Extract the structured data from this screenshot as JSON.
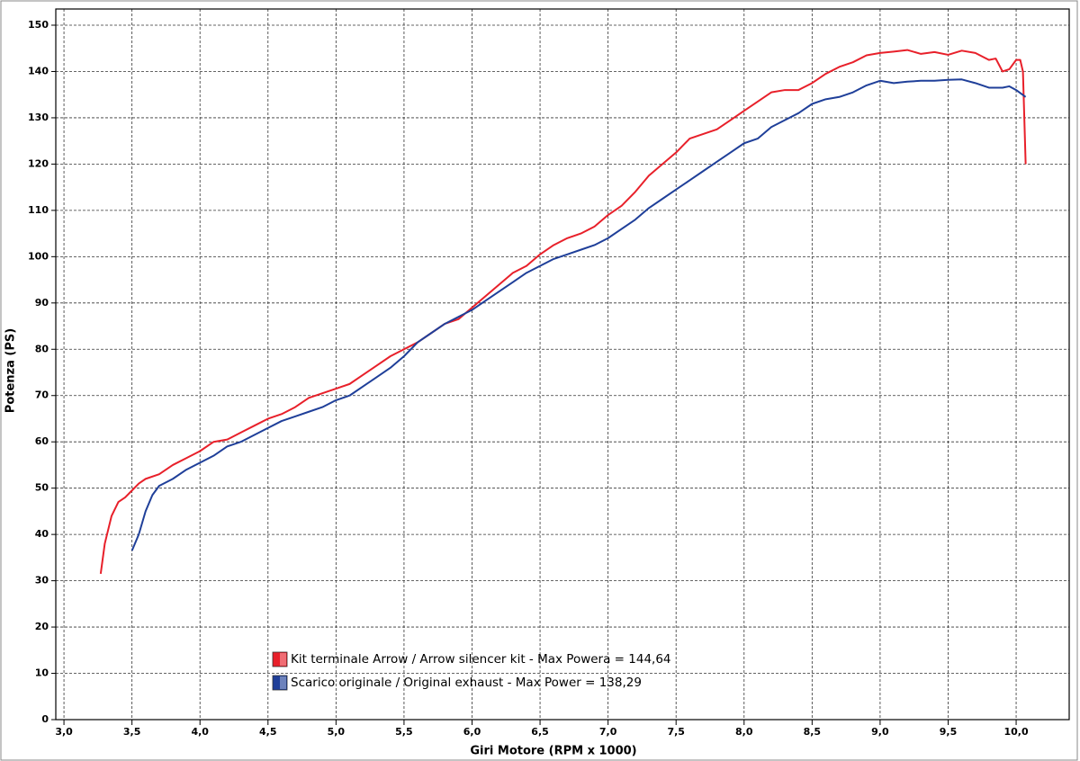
{
  "chart_data": {
    "type": "line",
    "x_label": "Giri Motore (RPM x 1000)",
    "y_label": "Potenza (PS)",
    "xlim": [
      2.94,
      10.39
    ],
    "ylim": [
      0,
      153.5
    ],
    "xticks": [
      {
        "value": 3,
        "label": "3,0"
      },
      {
        "value": 3.5,
        "label": "3,5"
      },
      {
        "value": 4,
        "label": "4,0"
      },
      {
        "value": 4.5,
        "label": "4,5"
      },
      {
        "value": 5,
        "label": "5,0"
      },
      {
        "value": 5.5,
        "label": "5,5"
      },
      {
        "value": 6,
        "label": "6,0"
      },
      {
        "value": 6.5,
        "label": "6,5"
      },
      {
        "value": 7,
        "label": "7,0"
      },
      {
        "value": 7.5,
        "label": "7,5"
      },
      {
        "value": 8,
        "label": "8,0"
      },
      {
        "value": 8.5,
        "label": "8,5"
      },
      {
        "value": 9,
        "label": "9,0"
      },
      {
        "value": 9.5,
        "label": "9,5"
      },
      {
        "value": 10,
        "label": "10,0"
      }
    ],
    "yticks": [
      0,
      10,
      20,
      30,
      40,
      50,
      60,
      70,
      80,
      90,
      100,
      110,
      120,
      130,
      140,
      150
    ],
    "grid": true,
    "series": [
      {
        "name": "Kit terminale Arrow / Arrow silencer kit - Max Powera = 144,64",
        "color": "#e8202a",
        "x": [
          3.27,
          3.3,
          3.35,
          3.4,
          3.45,
          3.5,
          3.55,
          3.6,
          3.7,
          3.8,
          3.9,
          4.0,
          4.1,
          4.2,
          4.3,
          4.4,
          4.5,
          4.6,
          4.7,
          4.8,
          4.9,
          5.0,
          5.1,
          5.2,
          5.3,
          5.4,
          5.5,
          5.6,
          5.7,
          5.8,
          5.9,
          6.0,
          6.1,
          6.2,
          6.3,
          6.4,
          6.5,
          6.6,
          6.7,
          6.8,
          6.9,
          7.0,
          7.1,
          7.2,
          7.3,
          7.4,
          7.5,
          7.6,
          7.7,
          7.8,
          7.9,
          8.0,
          8.1,
          8.2,
          8.3,
          8.4,
          8.5,
          8.6,
          8.7,
          8.8,
          8.9,
          9.0,
          9.1,
          9.2,
          9.3,
          9.4,
          9.5,
          9.6,
          9.7,
          9.8,
          9.85,
          9.9,
          9.95,
          10.0,
          10.03,
          10.05,
          10.06,
          10.07
        ],
        "values": [
          31.5,
          38,
          44,
          47,
          48,
          49.5,
          51,
          52,
          53,
          55,
          56.5,
          58,
          60,
          60.5,
          62,
          63.5,
          65,
          66,
          67.5,
          69.5,
          70.5,
          71.5,
          72.5,
          74.5,
          76.5,
          78.5,
          80,
          81.5,
          83.5,
          85.5,
          86.5,
          89,
          91.5,
          94,
          96.5,
          98,
          100.5,
          102.5,
          104,
          105,
          106.5,
          109,
          111,
          114,
          117.5,
          120,
          122.5,
          125.5,
          126.5,
          127.5,
          129.5,
          131.5,
          133.5,
          135.5,
          136,
          136,
          137.5,
          139.5,
          141,
          142,
          143.5,
          144,
          144.3,
          144.64,
          143.8,
          144.2,
          143.6,
          144.5,
          144,
          142.5,
          142.8,
          140,
          140.5,
          142.5,
          142.5,
          140,
          130,
          120
        ]
      },
      {
        "name": "Scarico originale / Original exhaust - Max Power = 138,29",
        "color": "#1f3f99",
        "x": [
          3.5,
          3.55,
          3.6,
          3.65,
          3.7,
          3.8,
          3.9,
          4.0,
          4.1,
          4.2,
          4.3,
          4.4,
          4.5,
          4.6,
          4.7,
          4.8,
          4.9,
          5.0,
          5.1,
          5.2,
          5.3,
          5.4,
          5.5,
          5.6,
          5.7,
          5.8,
          5.9,
          6.0,
          6.1,
          6.2,
          6.3,
          6.4,
          6.5,
          6.6,
          6.7,
          6.8,
          6.9,
          7.0,
          7.1,
          7.2,
          7.3,
          7.4,
          7.5,
          7.6,
          7.7,
          7.8,
          7.9,
          8.0,
          8.1,
          8.2,
          8.3,
          8.4,
          8.5,
          8.6,
          8.7,
          8.8,
          8.9,
          9.0,
          9.1,
          9.2,
          9.3,
          9.4,
          9.5,
          9.6,
          9.7,
          9.8,
          9.9,
          9.95,
          10.0,
          10.07
        ],
        "values": [
          36.5,
          40,
          45,
          48.5,
          50.5,
          52,
          54,
          55.5,
          57,
          59,
          60,
          61.5,
          63,
          64.5,
          65.5,
          66.5,
          67.5,
          69,
          70,
          72,
          74,
          76,
          78.5,
          81.5,
          83.5,
          85.5,
          87,
          88.5,
          90.5,
          92.5,
          94.5,
          96.5,
          98,
          99.5,
          100.5,
          101.5,
          102.5,
          104,
          106,
          108,
          110.5,
          112.5,
          114.5,
          116.5,
          118.5,
          120.5,
          122.5,
          124.5,
          125.5,
          128,
          129.5,
          131,
          133,
          134,
          134.5,
          135.5,
          137,
          138,
          137.5,
          137.8,
          138,
          138,
          138.2,
          138.29,
          137.5,
          136.5,
          136.5,
          136.8,
          136,
          134.5
        ]
      }
    ]
  }
}
